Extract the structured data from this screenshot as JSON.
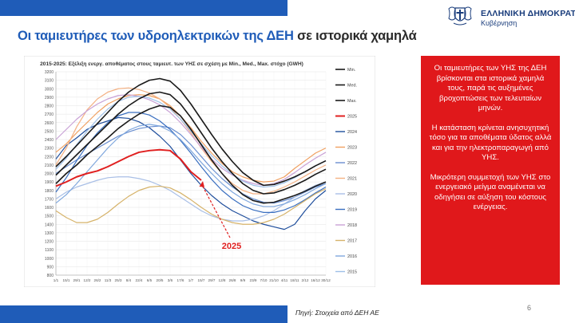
{
  "header": {
    "gov_name": "ΕΛΛΗΝΙΚΗ ΔΗΜΟΚΡΑΤΙΑ",
    "gov_sub": "Κυβέρνηση",
    "title_part1": "Οι ταμιευτήρες των υδροηλεκτρικών της ΔΕΗ",
    "title_part2": " σε ιστορικά χαμηλά"
  },
  "colors": {
    "brand_blue": "#1f5cb8",
    "highlight_red": "#e0181b"
  },
  "chart_data": {
    "type": "line",
    "title": "2015-2025: Εξέλιξη ενεργ. αποθέματος στους ταμιευτ. των ΥΗΣ σε σχέση με Min., Med., Max. στόχο (GWH)",
    "xlabel": "",
    "ylabel": "",
    "ylim": [
      800,
      3200
    ],
    "yticks": [
      800,
      900,
      1000,
      1100,
      1200,
      1300,
      1400,
      1500,
      1600,
      1700,
      1800,
      1900,
      2000,
      2100,
      2200,
      2300,
      2400,
      2500,
      2600,
      2700,
      2800,
      2900,
      3000,
      3100,
      3200
    ],
    "xticks": [
      "1/1",
      "15/1",
      "29/1",
      "12/2",
      "26/2",
      "11/3",
      "25/3",
      "8/4",
      "22/4",
      "6/5",
      "20/5",
      "3/6",
      "17/6",
      "1/7",
      "15/7",
      "29/7",
      "12/8",
      "26/8",
      "9/9",
      "23/9",
      "7/10",
      "21/10",
      "4/11",
      "18/11",
      "2/12",
      "16/12",
      "30/12"
    ],
    "grid": true,
    "legend_position": "right",
    "annotation": "2025",
    "series": [
      {
        "name": "Min.",
        "color": "#1a1a1a",
        "width": 1.6,
        "values": [
          1880,
          2000,
          2100,
          2220,
          2320,
          2420,
          2530,
          2620,
          2700,
          2760,
          2800,
          2780,
          2680,
          2520,
          2340,
          2160,
          2000,
          1860,
          1750,
          1680,
          1650,
          1660,
          1700,
          1740,
          1790,
          1850,
          1900
        ]
      },
      {
        "name": "Med.",
        "color": "#1a1a1a",
        "width": 1.6,
        "values": [
          1980,
          2100,
          2220,
          2340,
          2460,
          2580,
          2700,
          2800,
          2880,
          2940,
          2960,
          2930,
          2820,
          2660,
          2480,
          2300,
          2140,
          2000,
          1880,
          1800,
          1760,
          1770,
          1810,
          1860,
          1920,
          1990,
          2050
        ]
      },
      {
        "name": "Max.",
        "color": "#1a1a1a",
        "width": 1.6,
        "values": [
          2080,
          2200,
          2330,
          2460,
          2590,
          2720,
          2850,
          2960,
          3040,
          3100,
          3120,
          3090,
          2980,
          2820,
          2640,
          2460,
          2290,
          2140,
          2010,
          1920,
          1860,
          1870,
          1910,
          1960,
          2020,
          2090,
          2150
        ]
      },
      {
        "name": "2025",
        "color": "#e02020",
        "width": 2,
        "values": [
          1850,
          1900,
          1960,
          2000,
          2030,
          2080,
          2140,
          2200,
          2250,
          2270,
          2280,
          2270,
          2170,
          2020,
          1920
        ]
      },
      {
        "name": "2024",
        "color": "#1f4e9c",
        "width": 1.2,
        "values": [
          2170,
          2330,
          2420,
          2520,
          2580,
          2620,
          2660,
          2650,
          2610,
          2540,
          2440,
          2320,
          2160,
          2000,
          1860,
          1740,
          1640,
          1560,
          1500,
          1440,
          1400,
          1370,
          1340,
          1400,
          1560,
          1700,
          1800
        ]
      },
      {
        "name": "2023",
        "color": "#f0a060",
        "width": 1.2,
        "values": [
          2250,
          2350,
          2480,
          2600,
          2720,
          2820,
          2880,
          2920,
          2930,
          2920,
          2880,
          2800,
          2680,
          2540,
          2380,
          2240,
          2120,
          2020,
          1960,
          1920,
          1900,
          1910,
          1960,
          2060,
          2150,
          2240,
          2300
        ]
      },
      {
        "name": "2022",
        "color": "#6a8fd0",
        "width": 1.2,
        "values": [
          2000,
          2080,
          2160,
          2230,
          2300,
          2370,
          2440,
          2490,
          2530,
          2550,
          2560,
          2540,
          2460,
          2340,
          2200,
          2060,
          1940,
          1840,
          1760,
          1700,
          1660,
          1650,
          1680,
          1720,
          1780,
          1840,
          1880
        ]
      },
      {
        "name": "2021",
        "color": "#f4b183",
        "width": 1.2,
        "values": [
          2100,
          2300,
          2550,
          2750,
          2880,
          2960,
          3000,
          3010,
          2990,
          2950,
          2880,
          2780,
          2640,
          2480,
          2300,
          2140,
          2000,
          1880,
          1800,
          1760,
          1760,
          1790,
          1840,
          1900,
          1970,
          2040,
          2100
        ]
      },
      {
        "name": "2020",
        "color": "#a9bfe6",
        "width": 1.2,
        "values": [
          1700,
          1780,
          1840,
          1880,
          1920,
          1950,
          1960,
          1960,
          1940,
          1910,
          1860,
          1800,
          1720,
          1640,
          1560,
          1500,
          1460,
          1440,
          1440,
          1460,
          1500,
          1560,
          1640,
          1720,
          1800,
          1860,
          1900
        ]
      },
      {
        "name": "2019",
        "color": "#3a6fc0",
        "width": 1.2,
        "values": [
          1780,
          1950,
          2150,
          2330,
          2480,
          2600,
          2680,
          2720,
          2720,
          2690,
          2620,
          2520,
          2390,
          2240,
          2080,
          1930,
          1800,
          1700,
          1620,
          1570,
          1540,
          1540,
          1570,
          1620,
          1690,
          1770,
          1840
        ]
      },
      {
        "name": "2018",
        "color": "#c9a2d6",
        "width": 1.2,
        "values": [
          2400,
          2520,
          2640,
          2740,
          2820,
          2880,
          2920,
          2930,
          2910,
          2870,
          2810,
          2720,
          2600,
          2460,
          2310,
          2170,
          2060,
          1980,
          1920,
          1880,
          1860,
          1880,
          1930,
          2010,
          2100,
          2180,
          2250
        ]
      },
      {
        "name": "2017",
        "color": "#d6b36a",
        "width": 1.2,
        "values": [
          1560,
          1480,
          1420,
          1420,
          1460,
          1540,
          1640,
          1730,
          1800,
          1840,
          1850,
          1830,
          1770,
          1690,
          1600,
          1520,
          1460,
          1420,
          1400,
          1400,
          1420,
          1460,
          1520,
          1600,
          1680,
          1760,
          1820
        ]
      },
      {
        "name": "2016",
        "color": "#7fa7dd",
        "width": 1.2,
        "values": [
          1650,
          1750,
          1880,
          2020,
          2160,
          2300,
          2420,
          2510,
          2560,
          2580,
          2560,
          2500,
          2400,
          2270,
          2130,
          2000,
          1880,
          1780,
          1700,
          1640,
          1610,
          1610,
          1640,
          1690,
          1750,
          1820,
          1880
        ]
      },
      {
        "name": "2015",
        "color": "#9ec0e8",
        "width": 1.2,
        "values": [
          2050,
          2180,
          2340,
          2500,
          2640,
          2760,
          2850,
          2900,
          2910,
          2890,
          2840,
          2760,
          2640,
          2500,
          2350,
          2210,
          2090,
          1990,
          1910,
          1860,
          1840,
          1850,
          1890,
          1950,
          2020,
          2090,
          2150
        ]
      }
    ]
  },
  "info_box": {
    "p1": "Οι ταμιευτήρες των ΥΗΣ της ΔΕΗ βρίσκονται στα ιστορικά χαμηλά τους, παρά τις αυξημένες βροχοπτώσεις των τελευταίων μηνών.",
    "p2": "Η κατάσταση κρίνεται ανησυχητική τόσο για τα αποθέματα ύδατος αλλά και για την ηλεκτροπαραγωγή από ΥΗΣ.",
    "p3": "Μικρότερη συμμετοχή των ΥΗΣ στο ενεργειακό μείγμα αναμένεται να οδηγήσει σε αύξηση του κόστους ενέργειας."
  },
  "footer": {
    "source": "Πηγή: Στοιχεία από ΔΕΗ ΑΕ",
    "page_number": "6"
  }
}
